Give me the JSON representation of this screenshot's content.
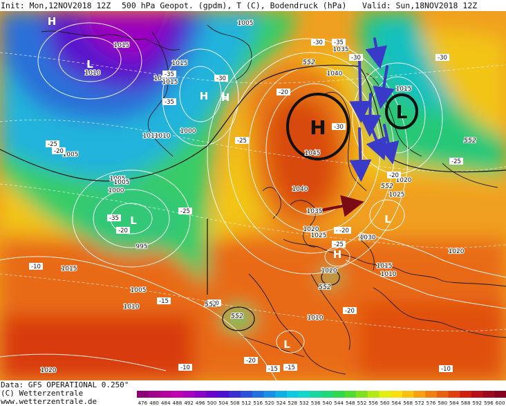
{
  "header": {
    "init": "Init: Mon,12NOV2018 12Z",
    "product": "500 hPa Geopot. (gpdm), T (C), Bodendruck (hPa)",
    "valid": "Valid: Sun,18NOV2018 12Z"
  },
  "footer": {
    "data": "Data: GFS OPERATIONAL 0.250°",
    "copyright": "(C) Wetterzentrale",
    "website": "www.wetterzentrale.de"
  },
  "scale": {
    "ticks": [
      "476",
      "480",
      "484",
      "488",
      "492",
      "496",
      "500",
      "504",
      "508",
      "512",
      "516",
      "520",
      "524",
      "528",
      "532",
      "536",
      "540",
      "544",
      "548",
      "552",
      "556",
      "560",
      "564",
      "568",
      "572",
      "576",
      "580",
      "584",
      "588",
      "592",
      "596",
      "600"
    ],
    "colors": [
      "#8a0077",
      "#a0008a",
      "#b4009c",
      "#c000b0",
      "#a800c0",
      "#8a00c8",
      "#6a00cc",
      "#4e10d0",
      "#3a30d4",
      "#2a50dc",
      "#2070e0",
      "#1890e4",
      "#10b0e6",
      "#10c8e0",
      "#10d8c8",
      "#18d8a0",
      "#20d878",
      "#30d850",
      "#50dc30",
      "#80e020",
      "#b0e818",
      "#e0ee10",
      "#f8e010",
      "#f8c010",
      "#f8a010",
      "#f08010",
      "#e86010",
      "#e04010",
      "#d02010",
      "#b81018",
      "#a00820",
      "#880020"
    ]
  },
  "map": {
    "pressure_centers": [
      {
        "label": "H",
        "kind": "high"
      },
      {
        "label": "L",
        "kind": "low"
      },
      {
        "label": "L",
        "kind": "low"
      },
      {
        "label": "H",
        "kind": "high"
      },
      {
        "label": "H",
        "kind": "high"
      },
      {
        "label": "L",
        "kind": "low"
      },
      {
        "label": "H",
        "kind": "high"
      },
      {
        "label": "L",
        "kind": "low"
      },
      {
        "label": "L",
        "kind": "low"
      },
      {
        "label": "L",
        "kind": "low"
      }
    ],
    "isobar_labels": [
      "1015",
      "1010",
      "1015",
      "1010",
      "1015",
      "1010",
      "1000",
      "1005",
      "1010",
      "1005",
      "1005",
      "1000",
      "995",
      "1015",
      "1005",
      "1010",
      "1020",
      "1030",
      "1035",
      "1040",
      "1015",
      "1045",
      "1040",
      "1035",
      "1025",
      "1030",
      "1020",
      "1025",
      "1015",
      "1010",
      "1020",
      "1020",
      "1010",
      "1020",
      "1005"
    ],
    "temperature_labels": [
      "-30",
      "-35",
      "-30",
      "-30",
      "-35",
      "-35",
      "-30",
      "-20",
      "-25",
      "-25",
      "-20",
      "-35",
      "-20",
      "-25",
      "-30",
      "-25",
      "-20",
      "-25",
      "-20",
      "-10",
      "-15",
      "-20",
      "-15",
      "-15",
      "-10",
      "-20",
      "-20",
      "-20",
      "-10"
    ],
    "geopotential_labels": [
      "552",
      "552",
      "552",
      "552",
      "552",
      "552"
    ],
    "annotations": {
      "high_circle_label": "H",
      "low_circle_label": "L"
    }
  }
}
